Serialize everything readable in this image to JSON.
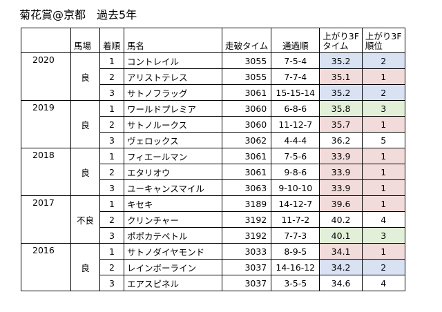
{
  "title": "菊花賞@京都　過去5年",
  "headers": {
    "track": "馬場",
    "finish": "着順",
    "horse": "馬名",
    "time": "走破タイム",
    "passing": "通過順",
    "last3f_time": "上がり3F\nタイム",
    "last3f_rank": "上がり3F\n順位"
  },
  "highlight_colors": {
    "rank1": "#f2dcdb",
    "rank2": "#d9e2f3",
    "rank3": "#e2efd9"
  },
  "years": [
    {
      "year": "2020",
      "track": "良",
      "rows": [
        {
          "pos": "1",
          "name": "コントレイル",
          "time": "3055",
          "passing": "7-5-4",
          "l3f": "35.2",
          "rank": "2",
          "hl": "bl"
        },
        {
          "pos": "2",
          "name": "アリストテレス",
          "time": "3055",
          "passing": "7-7-4",
          "l3f": "35.1",
          "rank": "1",
          "hl": "pk"
        },
        {
          "pos": "3",
          "name": "サトノフラッグ",
          "time": "3061",
          "passing": "15-15-14",
          "l3f": "35.2",
          "rank": "2",
          "hl": "bl"
        }
      ]
    },
    {
      "year": "2019",
      "track": "良",
      "rows": [
        {
          "pos": "1",
          "name": "ワールドプレミア",
          "time": "3060",
          "passing": "6-8-6",
          "l3f": "35.8",
          "rank": "3",
          "hl": "gr"
        },
        {
          "pos": "2",
          "name": "サトノルークス",
          "time": "3060",
          "passing": "11-12-7",
          "l3f": "35.7",
          "rank": "1",
          "hl": "pk"
        },
        {
          "pos": "3",
          "name": "ヴェロックス",
          "time": "3062",
          "passing": "4-4-4",
          "l3f": "36.2",
          "rank": "5",
          "hl": ""
        }
      ]
    },
    {
      "year": "2018",
      "track": "良",
      "rows": [
        {
          "pos": "1",
          "name": "フィエールマン",
          "time": "3061",
          "passing": "7-5-6",
          "l3f": "33.9",
          "rank": "1",
          "hl": "pk"
        },
        {
          "pos": "2",
          "name": "エタリオウ",
          "time": "3061",
          "passing": "9-8-6",
          "l3f": "33.9",
          "rank": "1",
          "hl": "pk"
        },
        {
          "pos": "3",
          "name": "ユーキャンスマイル",
          "time": "3063",
          "passing": "9-10-10",
          "l3f": "33.9",
          "rank": "1",
          "hl": "pk"
        }
      ]
    },
    {
      "year": "2017",
      "track": "不良",
      "rows": [
        {
          "pos": "1",
          "name": "キセキ",
          "time": "3189",
          "passing": "14-12-7",
          "l3f": "39.6",
          "rank": "1",
          "hl": "pk"
        },
        {
          "pos": "2",
          "name": "クリンチャー",
          "time": "3192",
          "passing": "11-7-2",
          "l3f": "40.2",
          "rank": "4",
          "hl": ""
        },
        {
          "pos": "3",
          "name": "ポポカテペトル",
          "time": "3192",
          "passing": "7-7-3",
          "l3f": "40.1",
          "rank": "3",
          "hl": "gr"
        }
      ]
    },
    {
      "year": "2016",
      "track": "良",
      "rows": [
        {
          "pos": "1",
          "name": "サトノダイヤモンド",
          "time": "3033",
          "passing": "8-9-5",
          "l3f": "34.1",
          "rank": "1",
          "hl": "pk"
        },
        {
          "pos": "2",
          "name": "レインボーライン",
          "time": "3037",
          "passing": "14-16-12",
          "l3f": "34.2",
          "rank": "2",
          "hl": "bl"
        },
        {
          "pos": "3",
          "name": "エアスピネル",
          "time": "3037",
          "passing": "3-5-5",
          "l3f": "34.6",
          "rank": "4",
          "hl": ""
        }
      ]
    }
  ]
}
